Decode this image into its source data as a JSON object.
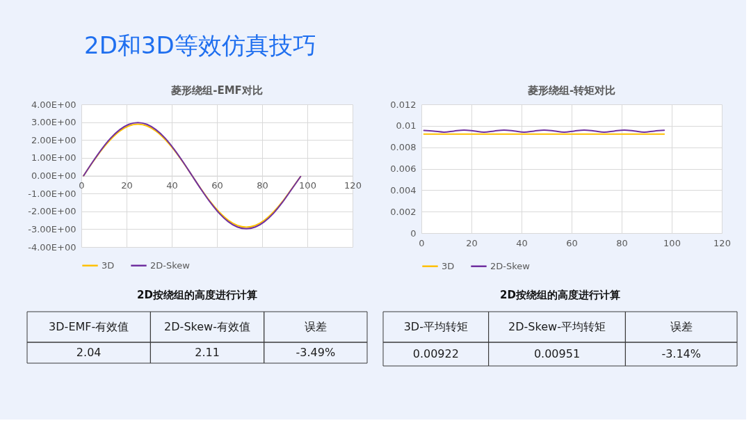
{
  "chart_data": [
    {
      "type": "other",
      "title": "2D和3D等效仿真技巧"
    },
    {
      "type": "line",
      "title": "菱形绕组-EMF对比",
      "x": [
        1,
        5,
        9,
        13,
        17,
        21,
        25,
        29,
        33,
        37,
        41,
        45,
        49,
        53,
        57,
        61,
        65,
        69,
        73,
        77,
        81,
        85,
        89,
        93,
        97
      ],
      "series": [
        {
          "name": "3D",
          "color": "#ffc000",
          "values": [
            0,
            0.75,
            1.45,
            2.04,
            2.5,
            2.79,
            2.89,
            2.79,
            2.5,
            2.04,
            1.45,
            0.75,
            0,
            -0.75,
            -1.45,
            -2.04,
            -2.5,
            -2.79,
            -2.89,
            -2.79,
            -2.5,
            -2.04,
            -1.45,
            -0.75,
            -0.05
          ]
        },
        {
          "name": "2D-Skew",
          "color": "#7030a0",
          "values": [
            0,
            0.77,
            1.49,
            2.11,
            2.58,
            2.88,
            2.98,
            2.88,
            2.58,
            2.11,
            1.49,
            0.77,
            0,
            -0.77,
            -1.49,
            -2.11,
            -2.58,
            -2.88,
            -2.98,
            -2.88,
            -2.58,
            -2.11,
            -1.49,
            -0.77,
            -0.05
          ]
        }
      ],
      "xlim": [
        0,
        120
      ],
      "xticks": [
        0,
        20,
        40,
        60,
        80,
        100,
        120
      ],
      "ylim": [
        -4,
        4
      ],
      "yticks": [
        {
          "value": -4,
          "label": "-4.00E+00"
        },
        {
          "value": -3,
          "label": "-3.00E+00"
        },
        {
          "value": -2,
          "label": "-2.00E+00"
        },
        {
          "value": -1,
          "label": "-1.00E+00"
        },
        {
          "value": 0,
          "label": "0.00E+00"
        },
        {
          "value": 1,
          "label": "1.00E+00"
        },
        {
          "value": 2,
          "label": "2.00E+00"
        },
        {
          "value": 3,
          "label": "3.00E+00"
        },
        {
          "value": 4,
          "label": "4.00E+00"
        }
      ],
      "grid": true,
      "legend": "bottom"
    },
    {
      "type": "line",
      "title": "菱形绕组-转矩对比",
      "x": [
        1,
        5,
        9,
        13,
        17,
        21,
        25,
        29,
        33,
        37,
        41,
        45,
        49,
        53,
        57,
        61,
        65,
        69,
        73,
        77,
        81,
        85,
        89,
        93,
        97
      ],
      "series": [
        {
          "name": "3D",
          "color": "#ffc000",
          "values": [
            0.00922,
            0.00922,
            0.00922,
            0.00922,
            0.00922,
            0.00922,
            0.00922,
            0.00922,
            0.00922,
            0.00922,
            0.00922,
            0.00922,
            0.00922,
            0.00922,
            0.00922,
            0.00922,
            0.00922,
            0.00922,
            0.00922,
            0.00922,
            0.00922,
            0.00922,
            0.00922,
            0.00922,
            0.00922
          ]
        },
        {
          "name": "2D-Skew",
          "color": "#7030a0",
          "values": [
            0.00957,
            0.00951,
            0.00941,
            0.00951,
            0.0096,
            0.00952,
            0.00941,
            0.00951,
            0.0096,
            0.00952,
            0.00941,
            0.00951,
            0.0096,
            0.00952,
            0.00941,
            0.00951,
            0.0096,
            0.00952,
            0.00941,
            0.00951,
            0.0096,
            0.00952,
            0.00941,
            0.00951,
            0.00958
          ]
        }
      ],
      "xlim": [
        0,
        120
      ],
      "xticks": [
        0,
        20,
        40,
        60,
        80,
        100,
        120
      ],
      "ylim": [
        0,
        0.012
      ],
      "yticks": [
        0,
        0.002,
        0.004,
        0.006,
        0.008,
        0.01,
        0.012
      ],
      "grid": true,
      "legend": "bottom"
    },
    {
      "type": "other",
      "title": "2D按绕组的高度进行计算",
      "annotations": [
        "3D-EMF-有效值",
        "2D-Skew-有效值",
        "误差",
        "2.04",
        "2.11",
        "-3.49%"
      ]
    },
    {
      "type": "other",
      "title": "2D按绕组的高度进行计算",
      "annotations": [
        "3D-平均转矩",
        "2D-Skew-平均转矩",
        "误差",
        "0.00922",
        "0.00951",
        "-3.14%"
      ]
    }
  ]
}
